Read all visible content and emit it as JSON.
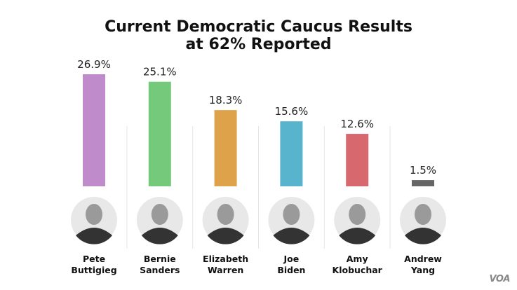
{
  "chart_data": {
    "type": "bar",
    "title": "Current Democratic Caucus Results",
    "subtitle": "at 62% Reported",
    "categories": [
      {
        "first": "Pete",
        "last": "Buttigieg"
      },
      {
        "first": "Bernie",
        "last": "Sanders"
      },
      {
        "first": "Elizabeth",
        "last": "Warren"
      },
      {
        "first": "Joe",
        "last": "Biden"
      },
      {
        "first": "Amy",
        "last": "Klobuchar"
      },
      {
        "first": "Andrew",
        "last": "Yang"
      }
    ],
    "values": [
      26.9,
      25.1,
      18.3,
      15.6,
      12.6,
      1.5
    ],
    "labels": [
      "26.9%",
      "25.1%",
      "18.3%",
      "15.6%",
      "12.6%",
      "1.5%"
    ],
    "colors": [
      "#c08bca",
      "#75c97a",
      "#dea24a",
      "#58b3cd",
      "#d7696e",
      "#666666"
    ],
    "ylim": [
      0,
      26.9
    ],
    "xlabel": "",
    "ylabel": ""
  },
  "logo": "VOA"
}
